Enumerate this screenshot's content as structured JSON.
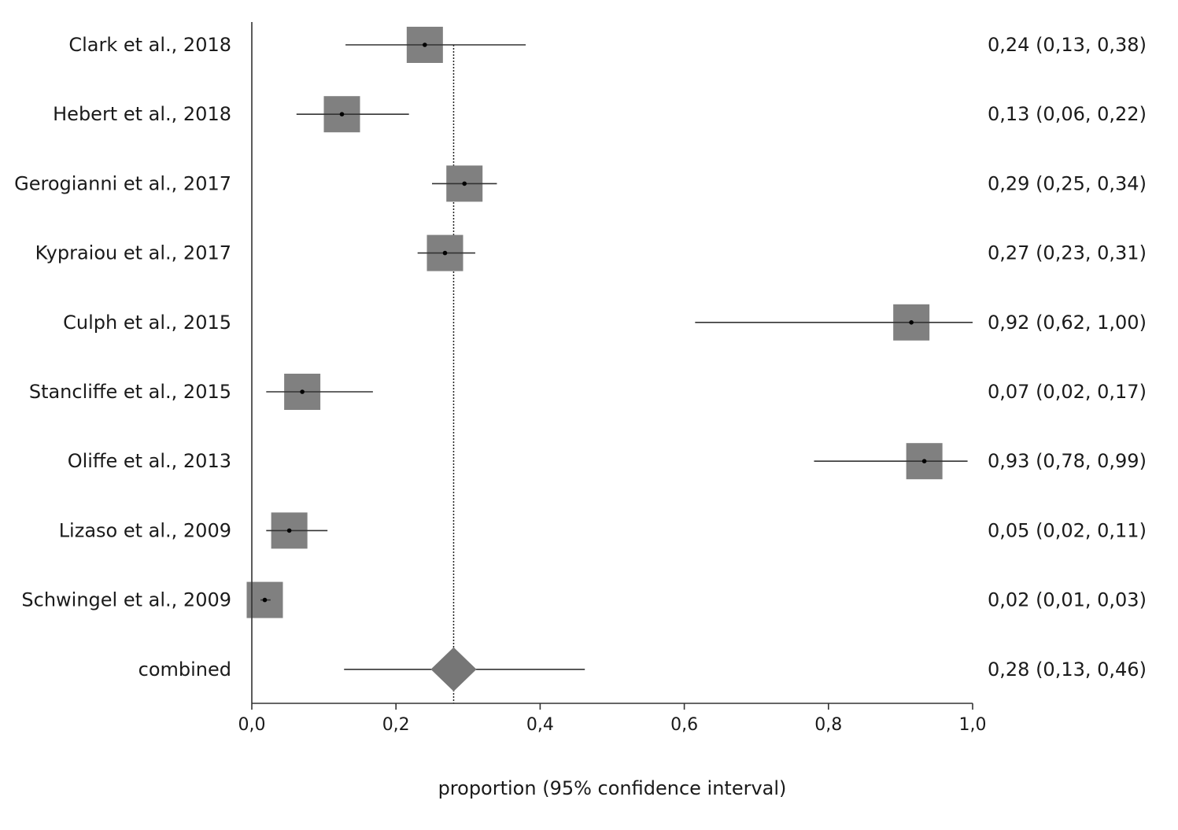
{
  "chart_data": {
    "type": "forest",
    "title": "",
    "xlabel": "proportion (95% confidence interval)",
    "ylabel": "",
    "xlim": [
      0.0,
      1.0
    ],
    "x_ticks": [
      0.0,
      0.2,
      0.4,
      0.6,
      0.8,
      1.0
    ],
    "x_tick_labels": [
      "0,0",
      "0,2",
      "0,4",
      "0,6",
      "0,8",
      "1,0"
    ],
    "reference_line": 0.28,
    "studies": [
      {
        "name": "Clark et al., 2018",
        "estimate": 0.24,
        "lower": 0.13,
        "upper": 0.38,
        "ci_text": "0,24 (0,13, 0,38)"
      },
      {
        "name": "Hebert et al., 2018",
        "estimate": 0.125,
        "lower": 0.062,
        "upper": 0.218,
        "ci_text": "0,13 (0,06, 0,22)"
      },
      {
        "name": "Gerogianni et al., 2017",
        "estimate": 0.295,
        "lower": 0.25,
        "upper": 0.34,
        "ci_text": "0,29 (0,25, 0,34)"
      },
      {
        "name": "Kypraiou et al., 2017",
        "estimate": 0.268,
        "lower": 0.23,
        "upper": 0.31,
        "ci_text": "0,27 (0,23, 0,31)"
      },
      {
        "name": "Culph et al., 2015",
        "estimate": 0.915,
        "lower": 0.615,
        "upper": 1.0,
        "ci_text": "0,92 (0,62, 1,00)"
      },
      {
        "name": "Stancliffe et al., 2015",
        "estimate": 0.07,
        "lower": 0.02,
        "upper": 0.168,
        "ci_text": "0,07 (0,02, 0,17)"
      },
      {
        "name": "Oliffe et al., 2013",
        "estimate": 0.933,
        "lower": 0.78,
        "upper": 0.993,
        "ci_text": "0,93 (0,78, 0,99)"
      },
      {
        "name": "Lizaso et al., 2009",
        "estimate": 0.052,
        "lower": 0.02,
        "upper": 0.105,
        "ci_text": "0,05 (0,02, 0,11)"
      },
      {
        "name": "Schwingel et al., 2009",
        "estimate": 0.018,
        "lower": 0.012,
        "upper": 0.026,
        "ci_text": "0,02 (0,01, 0,03)"
      }
    ],
    "combined": {
      "name": "combined",
      "estimate": 0.28,
      "lower": 0.128,
      "upper": 0.462,
      "ci_text": "0,28 (0,13, 0,46)"
    },
    "colors": {
      "box": "#808080",
      "diamond": "#767676",
      "line": "#333333",
      "point": "#000000",
      "axis": "#333333"
    }
  }
}
